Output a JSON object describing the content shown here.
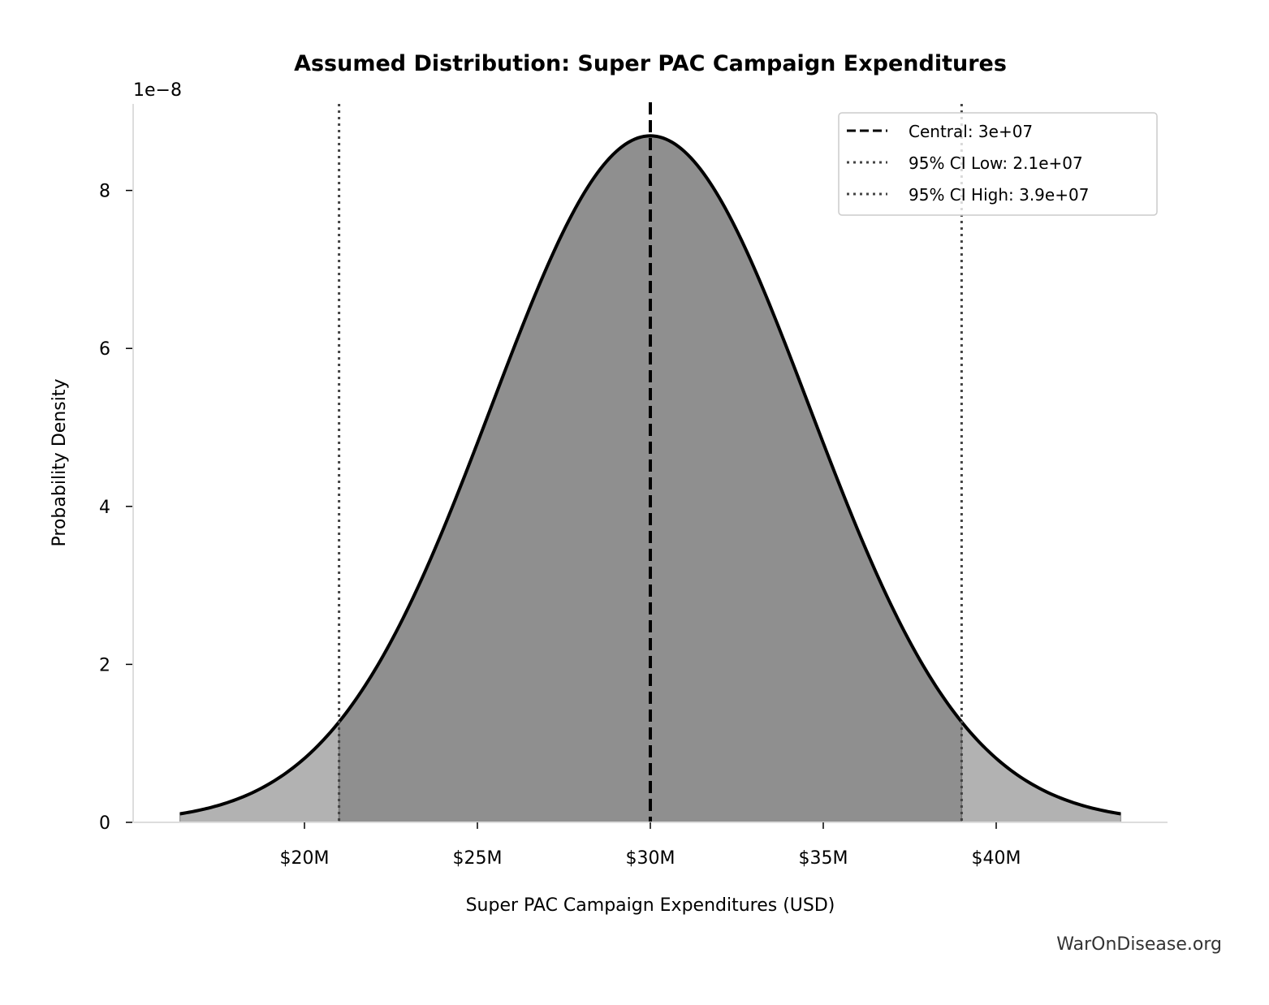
{
  "chart_data": {
    "type": "area",
    "title": "Assumed Distribution: Super PAC Campaign Expenditures",
    "xlabel": "Super PAC Campaign Expenditures (USD)",
    "ylabel": "Probability Density",
    "y_offset_label": "1e−8",
    "x_ticks": [
      {
        "value": 20000000,
        "label": "$20M"
      },
      {
        "value": 25000000,
        "label": "$25M"
      },
      {
        "value": 30000000,
        "label": "$30M"
      },
      {
        "value": 35000000,
        "label": "$35M"
      },
      {
        "value": 40000000,
        "label": "$40M"
      }
    ],
    "y_ticks": [
      {
        "value": 0,
        "label": "0"
      },
      {
        "value": 2,
        "label": "2"
      },
      {
        "value": 4,
        "label": "4"
      },
      {
        "value": 6,
        "label": "6"
      },
      {
        "value": 8,
        "label": "8"
      }
    ],
    "y_scale": 1e-08,
    "distribution": {
      "kind": "normal",
      "mean": 30000000,
      "sd": 4590000,
      "x_range": [
        16400000,
        43600000
      ],
      "peak_density": 8.67e-08
    },
    "central": 30000000,
    "ci_low": 21000000,
    "ci_high": 39000000,
    "legend": {
      "placement": "top-right",
      "entries": [
        {
          "label": "Central: 3e+07",
          "style": "dashed"
        },
        {
          "label": "95% CI Low: 2.1e+07",
          "style": "dotted"
        },
        {
          "label": "95% CI High: 3.9e+07",
          "style": "dotted"
        }
      ]
    },
    "grid": false,
    "colors": {
      "curve": "#000000",
      "ci_fill": "#8f8f8f",
      "tail_fill": "#b2b2b2",
      "ci_lines": "#444444",
      "spines": "#dddddd"
    }
  },
  "watermark": "WarOnDisease.org"
}
